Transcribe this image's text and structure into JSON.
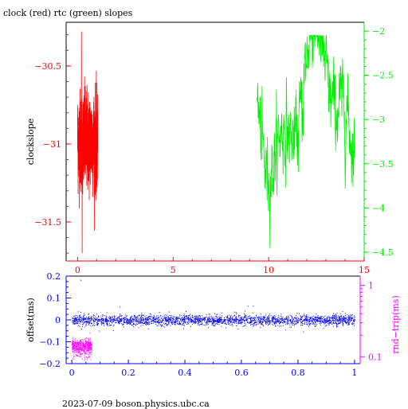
{
  "title": "clock (red) rtc (green) slopes",
  "footer": "2023-07-09  boson.physics.ubc.ca",
  "colors": {
    "red": "#ff0000",
    "green": "#00ee00",
    "blue": "#0000ff",
    "magenta": "#ff00ff",
    "black": "#000000"
  },
  "chart_data": [
    {
      "type": "line",
      "title": "clock (red) rtc (green) slopes",
      "ylabel": "clockslope",
      "xlim": [
        -0.6,
        15
      ],
      "ylim": [
        -31.75,
        -30.22
      ],
      "y2lim": [
        -4.6,
        -1.9
      ],
      "xticks": [
        0,
        5,
        10,
        15
      ],
      "yticks": [
        -30.5,
        -31,
        -31.5
      ],
      "y2ticks": [
        -2,
        -2.5,
        -3,
        -3.5,
        -4,
        -4.5
      ],
      "series": [
        {
          "name": "clock",
          "color": "red",
          "axis": "left",
          "x_range": [
            0,
            1.05
          ],
          "center": -30.98,
          "spread": 0.3,
          "min": -31.7,
          "max": -30.28
        },
        {
          "name": "rtc",
          "color": "green",
          "axis": "right",
          "x_range": [
            9.4,
            14.5
          ],
          "min": -4.45,
          "max": -2.05
        }
      ]
    },
    {
      "type": "scatter",
      "ylabel": "offset(ms)",
      "y2label": "rnd−trip(ms)",
      "xlim": [
        -0.02,
        1.02
      ],
      "ylim": [
        -0.2,
        0.2
      ],
      "y2lim_log": [
        0.08,
        1.35
      ],
      "xticks": [
        0,
        0.2,
        0.4,
        0.6,
        0.8,
        1
      ],
      "yticks": [
        0.2,
        0.1,
        0,
        -0.1,
        -0.2
      ],
      "y2ticks": [
        1,
        0.1
      ],
      "series": [
        {
          "name": "offset",
          "color": "blue",
          "axis": "left",
          "x_range": [
            0,
            1
          ],
          "center": 0,
          "spread": 0.012
        },
        {
          "name": "rnd-trip",
          "color": "magenta",
          "axis": "right",
          "x_range": [
            0,
            0.07
          ],
          "center": 0.14,
          "spread": 0.03
        }
      ]
    }
  ]
}
